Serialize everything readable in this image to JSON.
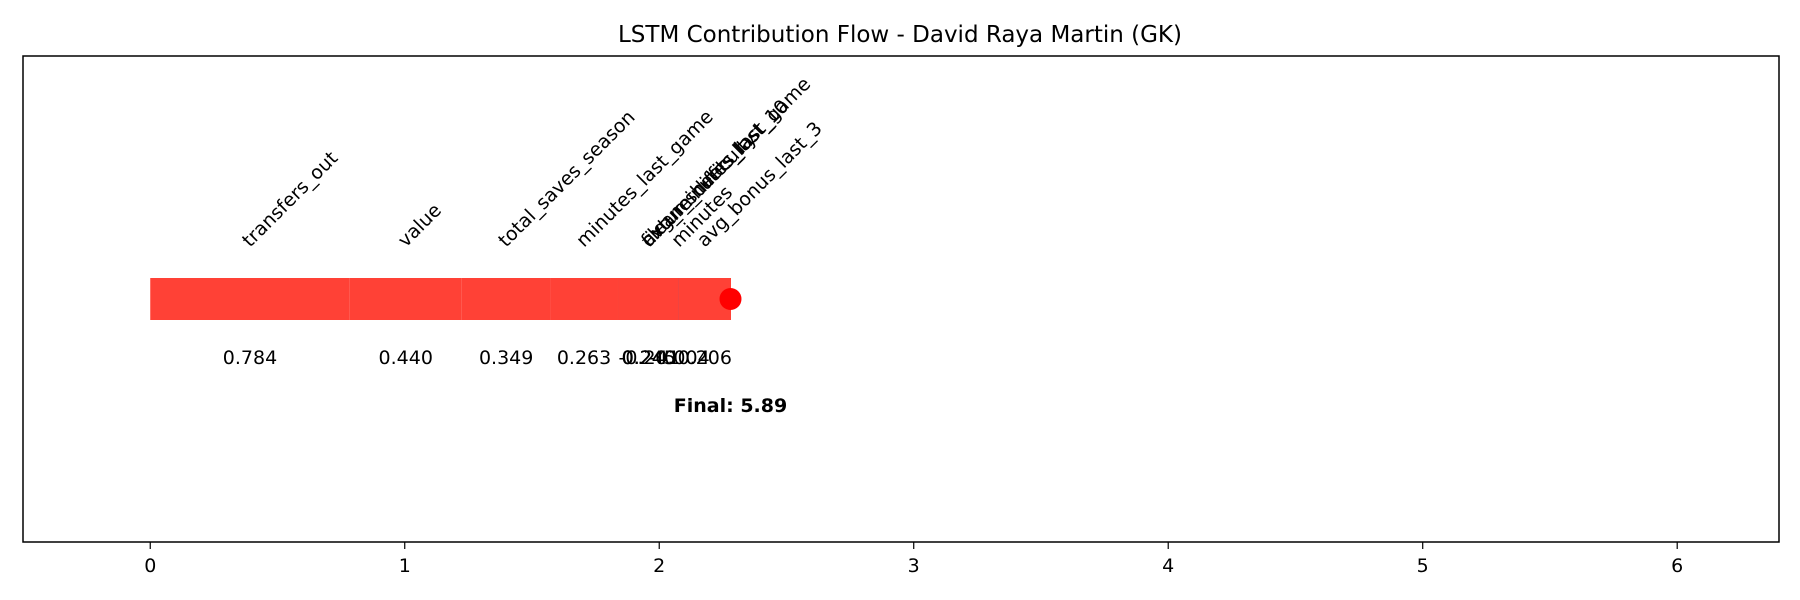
{
  "chart_data": {
    "type": "bar",
    "title": "LSTM Contribution Flow - David Raya Martin (GK)",
    "xlabel": "",
    "ylabel": "",
    "xlim": [
      -0.5,
      6.4
    ],
    "xticks": [
      "0",
      "1",
      "2",
      "3",
      "4",
      "5",
      "6"
    ],
    "grid": false,
    "final_label": "Final: 5.89",
    "final_point": 2.28,
    "colors": {
      "positive": "#FF4136",
      "negative": "#0074D9",
      "final_marker": "#FF0000"
    },
    "segments": [
      {
        "feature": "transfers_out",
        "start": 0.0,
        "end": 0.784,
        "value_label": "0.784",
        "sign": "positive"
      },
      {
        "feature": "value",
        "start": 0.784,
        "end": 1.224,
        "value_label": "0.440",
        "sign": "positive"
      },
      {
        "feature": "total_saves_season",
        "start": 1.224,
        "end": 1.573,
        "value_label": "0.349",
        "sign": "positive"
      },
      {
        "feature": "minutes_last_game",
        "start": 1.573,
        "end": 1.836,
        "value_label": "0.263",
        "sign": "positive"
      },
      {
        "feature": "clean_sheets_last_game",
        "start": 1.836,
        "end": 2.081,
        "value_label": "0.245",
        "sign": "positive"
      },
      {
        "feature": "avg_minutes_last_10",
        "start": 2.081,
        "end": 1.84,
        "value_label": "-0.241",
        "sign": "negative"
      },
      {
        "feature": "fixture_difficulty",
        "start": 1.84,
        "end": 2.08,
        "value_label": "0.240",
        "sign": "positive"
      },
      {
        "feature": "minutes",
        "start": 2.08,
        "end": 2.076,
        "value_label": "-0.004",
        "sign": "negative"
      },
      {
        "feature": "avg_bonus_last_3",
        "start": 2.076,
        "end": 2.282,
        "value_label": "0.206",
        "sign": "positive"
      }
    ]
  }
}
